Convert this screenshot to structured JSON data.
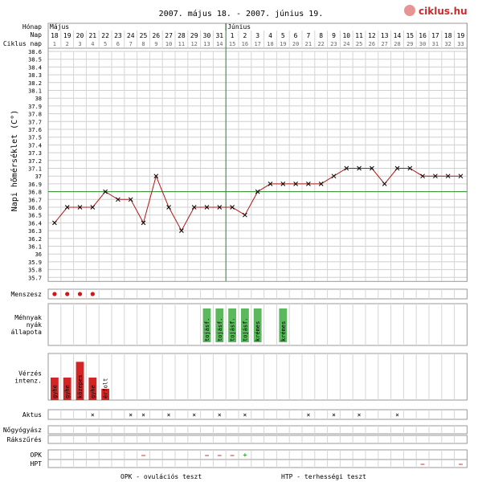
{
  "title": "2007. május 18. - 2007. június 19.",
  "logo": {
    "text": "ciklus",
    "suffix": ".hu",
    "color": "#cc2b2b"
  },
  "header_labels": {
    "month": "Hónap",
    "day": "Nap",
    "cycle_day": "Ciklus nap"
  },
  "months": [
    {
      "label": "Május",
      "start_index": 0
    },
    {
      "label": "Június",
      "start_index": 14
    }
  ],
  "days": [
    "18",
    "19",
    "20",
    "21",
    "22",
    "23",
    "24",
    "25",
    "26",
    "27",
    "28",
    "29",
    "30",
    "31",
    "1",
    "2",
    "3",
    "4",
    "5",
    "6",
    "7",
    "8",
    "9",
    "10",
    "11",
    "12",
    "13",
    "14",
    "15",
    "16",
    "17",
    "18",
    "19"
  ],
  "cycle_days": [
    "1",
    "2",
    "3",
    "4",
    "5",
    "6",
    "7",
    "8",
    "9",
    "10",
    "11",
    "12",
    "13",
    "14",
    "15",
    "16",
    "17",
    "18",
    "19",
    "20",
    "21",
    "22",
    "23",
    "24",
    "25",
    "26",
    "27",
    "28",
    "29",
    "30",
    "31",
    "32",
    "33"
  ],
  "y_axis_label": "Napi hőmérséklet (C°)",
  "chart_data": {
    "type": "line",
    "title": "2007. május 18. - 2007. június 19.",
    "ylabel": "Napi hőmérséklet (C°)",
    "ylim": [
      35.7,
      38.6
    ],
    "y_ticks": [
      "38.6",
      "38.5",
      "38.4",
      "38.3",
      "38.2",
      "38.1",
      "38",
      "37.9",
      "37.8",
      "37.7",
      "37.6",
      "37.5",
      "37.4",
      "37.3",
      "37.2",
      "37.1",
      "37",
      "36.9",
      "36.8",
      "36.7",
      "36.6",
      "36.5",
      "36.4",
      "36.3",
      "36.2",
      "36.1",
      "36",
      "35.9",
      "35.8",
      "35.7"
    ],
    "x": [
      "18",
      "19",
      "20",
      "21",
      "22",
      "23",
      "24",
      "25",
      "26",
      "27",
      "28",
      "29",
      "30",
      "31",
      "1",
      "2",
      "3",
      "4",
      "5",
      "6",
      "7",
      "8",
      "9",
      "10",
      "11",
      "12",
      "13",
      "14",
      "15",
      "16",
      "17",
      "18",
      "19"
    ],
    "series": [
      {
        "values": [
          36.4,
          36.6,
          36.6,
          36.6,
          36.8,
          36.7,
          36.7,
          36.4,
          37.0,
          36.6,
          36.3,
          36.6,
          36.6,
          36.6,
          36.6,
          36.5,
          36.8,
          36.9,
          36.9,
          36.9,
          36.9,
          36.9,
          37.0,
          37.1,
          37.1,
          37.1,
          36.9,
          37.1,
          37.1,
          37.0,
          37.0,
          37.0,
          37.0
        ]
      }
    ],
    "coverline": 36.8,
    "ovulation_day_index": 14,
    "line_color": "#b01818",
    "marker_color": "#000000",
    "grid": true
  },
  "menses": {
    "label": "Menszesz",
    "days": [
      0,
      1,
      2,
      3
    ],
    "color": "#e01010"
  },
  "mucus": {
    "label": [
      "Méhnyak",
      "nyák",
      "állapota"
    ],
    "entries": [
      {
        "day": 12,
        "text": "tojásf."
      },
      {
        "day": 13,
        "text": "tojásf."
      },
      {
        "day": 14,
        "text": "tojásf."
      },
      {
        "day": 15,
        "text": "tojásf."
      },
      {
        "day": 16,
        "text": "krémes"
      },
      {
        "day": 18,
        "text": "krémes"
      }
    ],
    "color": "#5cb85c"
  },
  "bleeding": {
    "label": [
      "Vérzés",
      "intenz."
    ],
    "entries": [
      {
        "day": 0,
        "text": "gyhe",
        "level": 0.5
      },
      {
        "day": 1,
        "text": "gyhe",
        "level": 0.5
      },
      {
        "day": 2,
        "text": "közepes",
        "level": 0.85
      },
      {
        "day": 3,
        "text": "gyhe",
        "level": 0.5
      },
      {
        "day": 4,
        "text": "érfolt",
        "level": 0.25
      }
    ],
    "color": "#d42424"
  },
  "intercourse": {
    "label": "Aktus",
    "mark": "×",
    "days": [
      3,
      6,
      7,
      9,
      11,
      13,
      15,
      20,
      22,
      24,
      27
    ]
  },
  "gyn": {
    "label": "Nőgyógyász"
  },
  "screening": {
    "label": "Rákszűrés"
  },
  "opk": {
    "label": "OPK",
    "entries": [
      {
        "day": 7,
        "text": "–",
        "color": "#d42424"
      },
      {
        "day": 12,
        "text": "–",
        "color": "#d42424"
      },
      {
        "day": 13,
        "text": "–",
        "color": "#d42424"
      },
      {
        "day": 14,
        "text": "–",
        "color": "#d42424"
      },
      {
        "day": 15,
        "text": "+",
        "color": "#2a9a2a"
      }
    ]
  },
  "hpt": {
    "label": "HPT",
    "entries": [
      {
        "day": 29,
        "text": "–",
        "color": "#d42424"
      },
      {
        "day": 32,
        "text": "–",
        "color": "#d42424"
      }
    ]
  },
  "legend": {
    "opk": "OPK - ovulációs teszt",
    "hpt": "HTP - terhességi teszt"
  }
}
